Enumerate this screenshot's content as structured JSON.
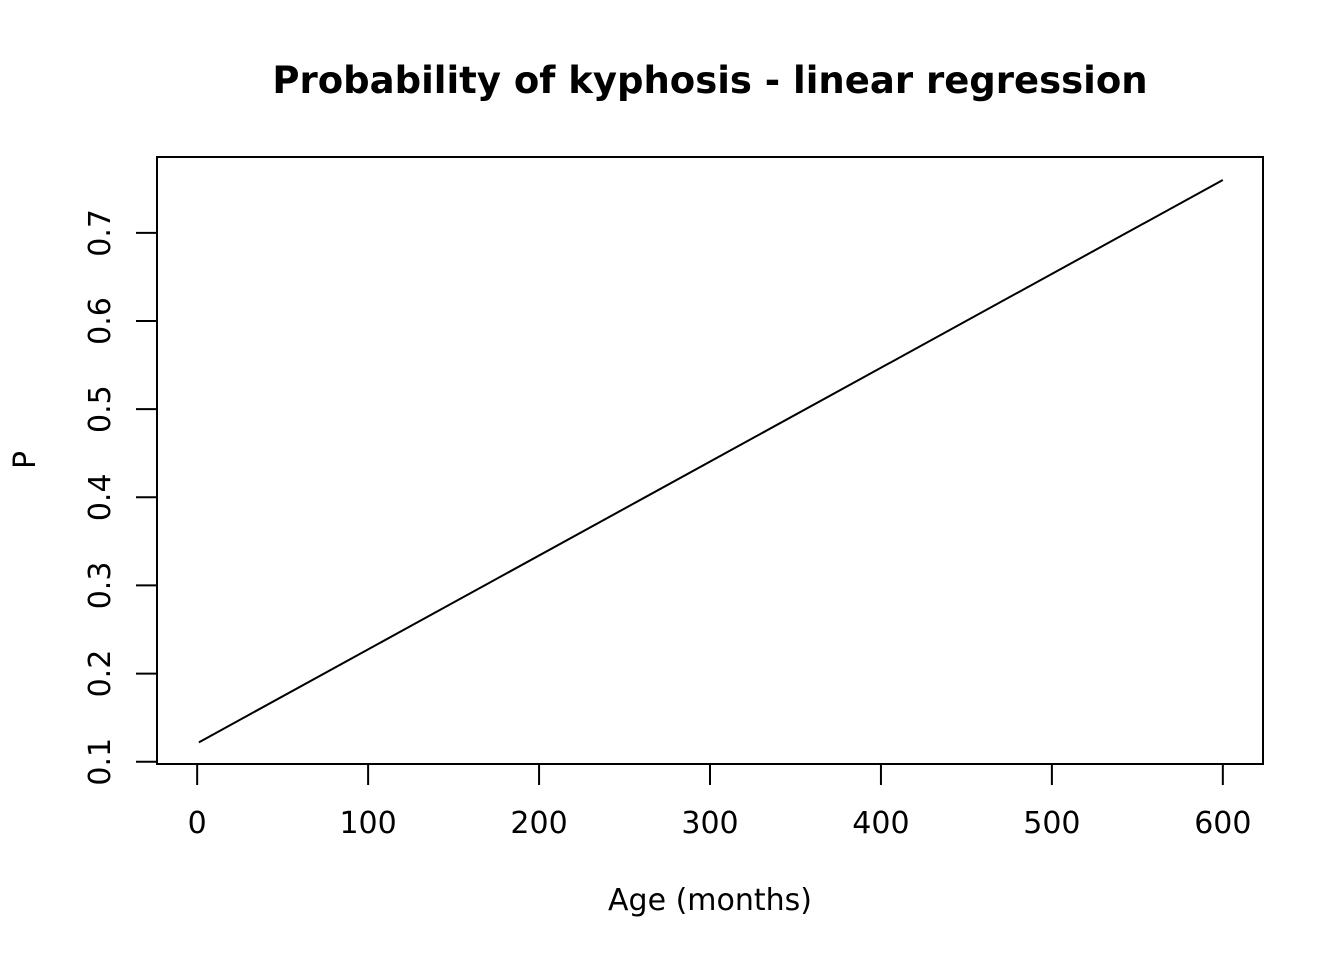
{
  "chart_data": {
    "type": "line",
    "title": "Probability of kyphosis - linear regression",
    "xlabel": "Age (months)",
    "ylabel": "P",
    "xlim": [
      -23.5,
      623.5
    ],
    "ylim": [
      0.0974,
      0.7861
    ],
    "xticks": [
      0,
      100,
      200,
      300,
      400,
      500,
      600
    ],
    "yticks": [
      0.1,
      0.2,
      0.3,
      0.4,
      0.5,
      0.6,
      0.7
    ],
    "grid": false,
    "series": [
      {
        "x": [
          1,
          600
        ],
        "y": [
          0.122,
          0.76
        ]
      }
    ],
    "colors": {
      "line": "#000000",
      "frame": "#000000",
      "background": "#ffffff"
    }
  }
}
